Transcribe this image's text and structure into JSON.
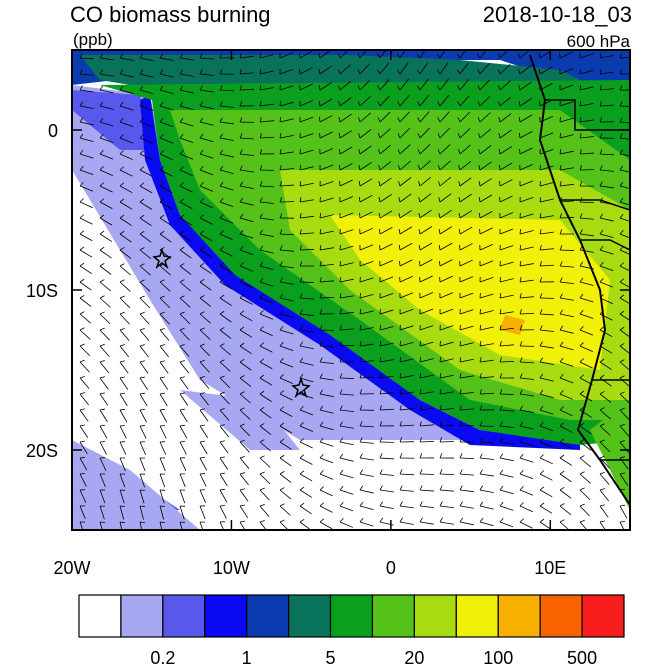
{
  "chart_data": {
    "type": "map",
    "title": "CO biomass burning",
    "units": "(ppb)",
    "time": "2018-10-18_03",
    "level": "600 hPa",
    "xlim": [
      -20,
      15
    ],
    "ylim": [
      -25,
      5
    ],
    "xticks": [
      {
        "value": -20,
        "label": "20W"
      },
      {
        "value": -10,
        "label": "10W"
      },
      0,
      {
        "value": 10,
        "label": "10E"
      }
    ],
    "yticks": [
      0,
      {
        "value": -10,
        "label": "10S"
      },
      {
        "value": -20,
        "label": "20S"
      }
    ],
    "colorbar": {
      "colors": [
        "#ffffff",
        "#a8a8f2",
        "#5858ec",
        "#0a0af2",
        "#0a3cb0",
        "#08735a",
        "#0aa01e",
        "#55c21a",
        "#a8dc10",
        "#f0f008",
        "#f8b000",
        "#f86400",
        "#f81e1e"
      ],
      "labels": [
        0.2,
        1,
        5,
        20,
        100,
        500
      ]
    }
  }
}
